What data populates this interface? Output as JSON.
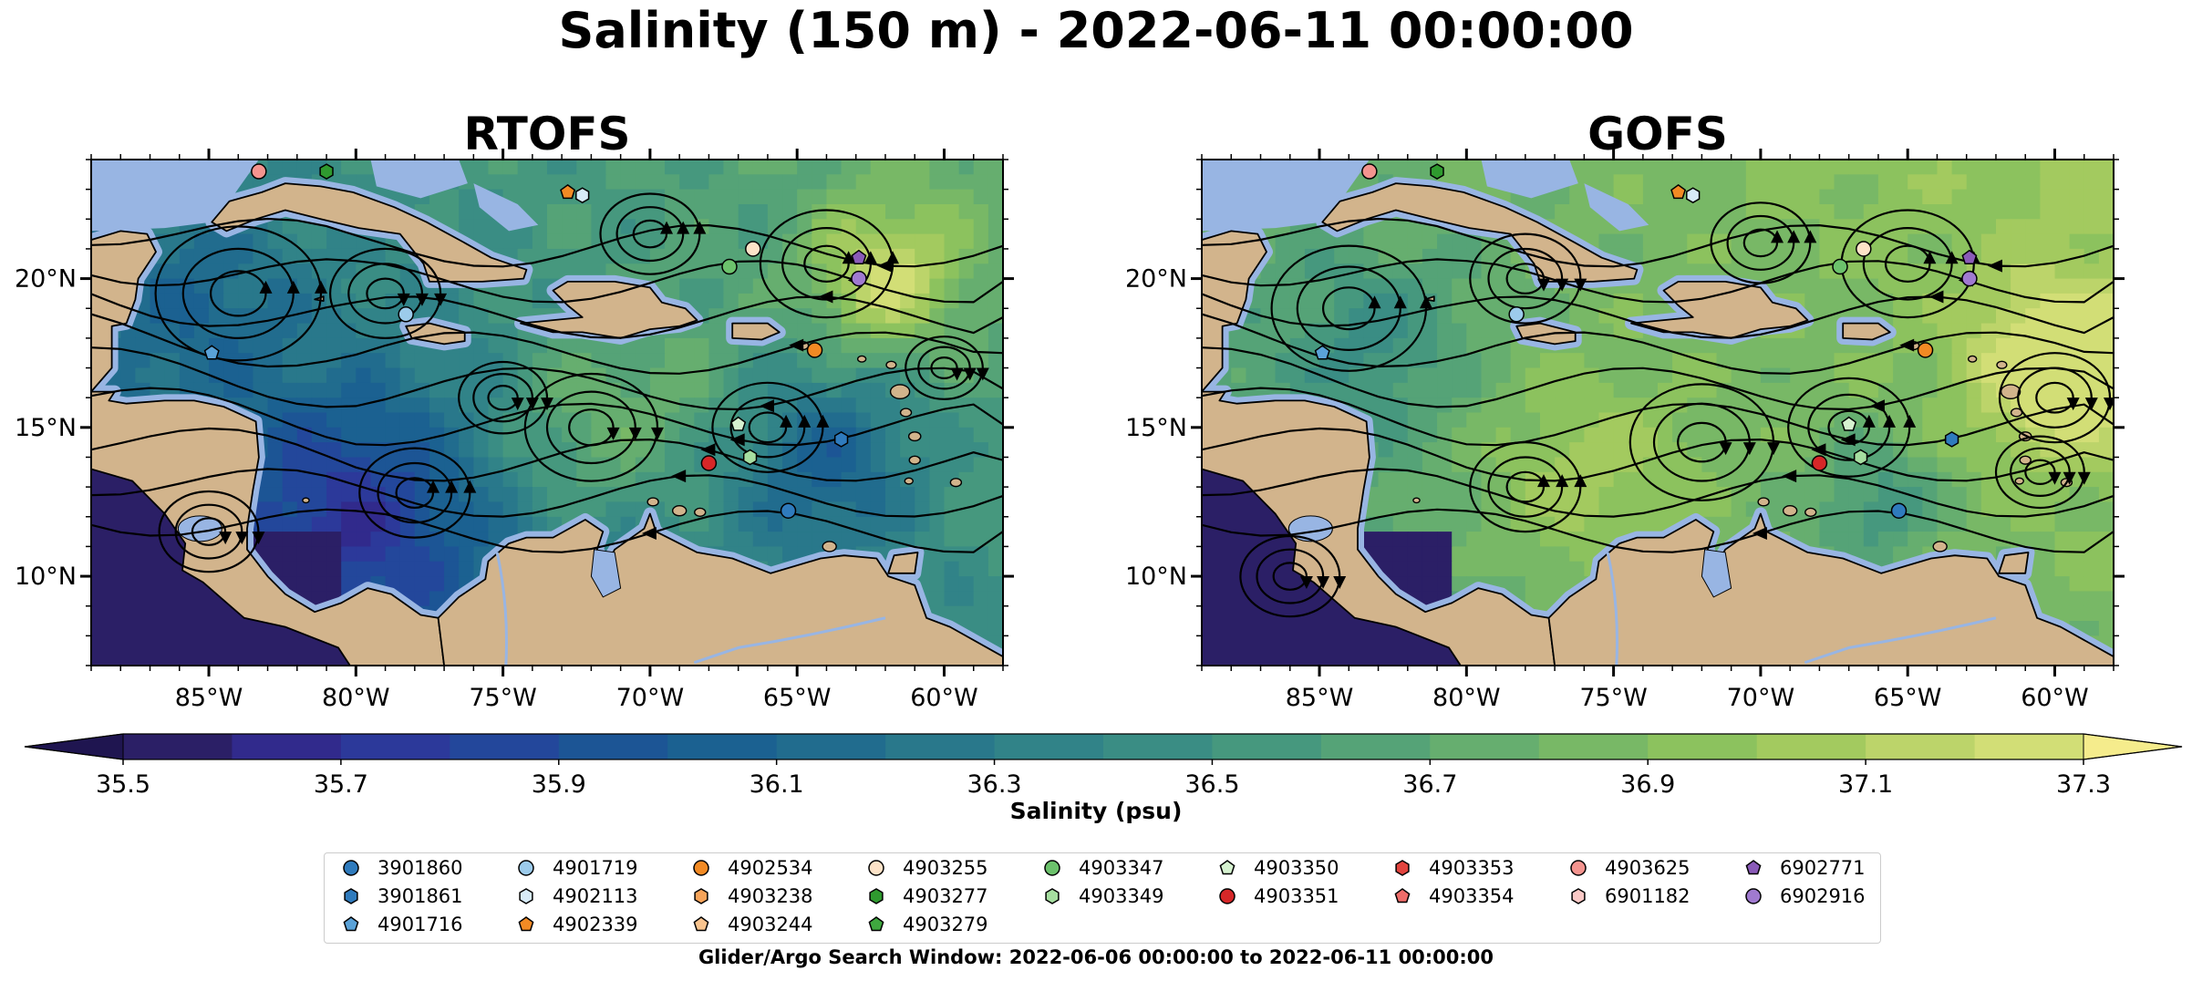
{
  "page": {
    "title": "Salinity (150 m) - 2022-06-11 00:00:00",
    "window_note": "Glider/Argo Search Window: 2022-06-06 00:00:00 to 2022-06-11 00:00:00"
  },
  "chart_data": {
    "type": "heatmap",
    "variable": "Salinity (150 m)",
    "time": "2022-06-11 00:00:00",
    "panels": [
      {
        "title": "RTOFS",
        "model": "RTOFS"
      },
      {
        "title": "GOFS",
        "model": "GOFS"
      }
    ],
    "map_extent": {
      "lon": [
        -89,
        -58
      ],
      "lat": [
        7,
        24
      ]
    },
    "xticks": [
      {
        "value": -85,
        "label": "85°W"
      },
      {
        "value": -80,
        "label": "80°W"
      },
      {
        "value": -75,
        "label": "75°W"
      },
      {
        "value": -70,
        "label": "70°W"
      },
      {
        "value": -65,
        "label": "65°W"
      },
      {
        "value": -60,
        "label": "60°W"
      }
    ],
    "yticks": [
      {
        "value": 10,
        "label": "10°N"
      },
      {
        "value": 15,
        "label": "15°N"
      },
      {
        "value": 20,
        "label": "20°N"
      }
    ],
    "colorbar": {
      "label": "Salinity (psu)",
      "range": [
        35.5,
        37.3
      ],
      "step": 0.1,
      "extend": "both",
      "tick_values": [
        35.5,
        35.7,
        35.9,
        36.1,
        36.3,
        36.5,
        36.7,
        36.9,
        37.1,
        37.3
      ],
      "tick_labels": [
        "35.5",
        "35.7",
        "35.9",
        "36.1",
        "36.3",
        "36.5",
        "36.7",
        "36.9",
        "37.1",
        "37.3"
      ],
      "colors": [
        "#2b1f66",
        "#312a8c",
        "#2c399a",
        "#23479b",
        "#1c5595",
        "#1b6191",
        "#216c8e",
        "#29788b",
        "#318388",
        "#3a8d84",
        "#46987e",
        "#55a377",
        "#66ae6f",
        "#78b866",
        "#8cc25e",
        "#a3ca5f",
        "#bcd46a",
        "#d2de76"
      ]
    },
    "legend": {
      "columns": [
        [
          {
            "id": "3901860",
            "marker": "circle",
            "color": "#2f7bbd"
          },
          {
            "id": "3901861",
            "marker": "hexagon",
            "color": "#2f7bbd"
          },
          {
            "id": "4901716",
            "marker": "pentagon",
            "color": "#5aa2d8"
          }
        ],
        [
          {
            "id": "4901719",
            "marker": "circle",
            "color": "#9ccbeb"
          },
          {
            "id": "4902113",
            "marker": "hexagon",
            "color": "#d7ebf7"
          },
          {
            "id": "4902339",
            "marker": "pentagon",
            "color": "#f28a24"
          }
        ],
        [
          {
            "id": "4902534",
            "marker": "circle",
            "color": "#f28a24"
          },
          {
            "id": "4903238",
            "marker": "hexagon",
            "color": "#f7a45a"
          },
          {
            "id": "4903244",
            "marker": "pentagon",
            "color": "#f9c48f"
          }
        ],
        [
          {
            "id": "4903255",
            "marker": "circle",
            "color": "#fde3c8"
          },
          {
            "id": "4903277",
            "marker": "hexagon",
            "color": "#2f9a2f"
          },
          {
            "id": "4903279",
            "marker": "pentagon",
            "color": "#3fa83f"
          }
        ],
        [
          {
            "id": "4903347",
            "marker": "circle",
            "color": "#6cc26c"
          },
          {
            "id": "4903349",
            "marker": "hexagon",
            "color": "#a6dea0"
          }
        ],
        [
          {
            "id": "4903350",
            "marker": "pentagon",
            "color": "#d6f2d0"
          },
          {
            "id": "4903351",
            "marker": "circle",
            "color": "#d62728"
          }
        ],
        [
          {
            "id": "4903353",
            "marker": "hexagon",
            "color": "#e2443e"
          },
          {
            "id": "4903354",
            "marker": "pentagon",
            "color": "#ef6d6a"
          }
        ],
        [
          {
            "id": "4903625",
            "marker": "circle",
            "color": "#f4948f"
          },
          {
            "id": "6901182",
            "marker": "hexagon",
            "color": "#fbc9c6"
          }
        ],
        [
          {
            "id": "6902771",
            "marker": "pentagon",
            "color": "#8a5bb8"
          },
          {
            "id": "6902916",
            "marker": "circle",
            "color": "#a07ad0"
          }
        ]
      ]
    },
    "observations": [
      {
        "id": "3901860",
        "lon": -65.3,
        "lat": 12.2
      },
      {
        "id": "3901861",
        "lon": -63.5,
        "lat": 14.6
      },
      {
        "id": "4901716",
        "lon": -84.9,
        "lat": 17.5
      },
      {
        "id": "4901719",
        "lon": -78.3,
        "lat": 18.8
      },
      {
        "id": "4902113",
        "lon": -72.3,
        "lat": 22.8
      },
      {
        "id": "4902339",
        "lon": -72.8,
        "lat": 22.9
      },
      {
        "id": "4902534",
        "lon": -64.4,
        "lat": 17.6
      },
      {
        "id": "4903255",
        "lon": -66.5,
        "lat": 21.0
      },
      {
        "id": "4903277",
        "lon": -81.0,
        "lat": 23.6
      },
      {
        "id": "4903347",
        "lon": -67.3,
        "lat": 20.4
      },
      {
        "id": "4903349",
        "lon": -66.6,
        "lat": 14.0
      },
      {
        "id": "4903350",
        "lon": -67.0,
        "lat": 15.1
      },
      {
        "id": "4903351",
        "lon": -68.0,
        "lat": 13.8
      },
      {
        "id": "4903625",
        "lon": -83.3,
        "lat": 23.6
      },
      {
        "id": "6902771",
        "lon": -62.9,
        "lat": 20.7
      },
      {
        "id": "6902916",
        "lon": -62.9,
        "lat": 20.0
      }
    ]
  }
}
